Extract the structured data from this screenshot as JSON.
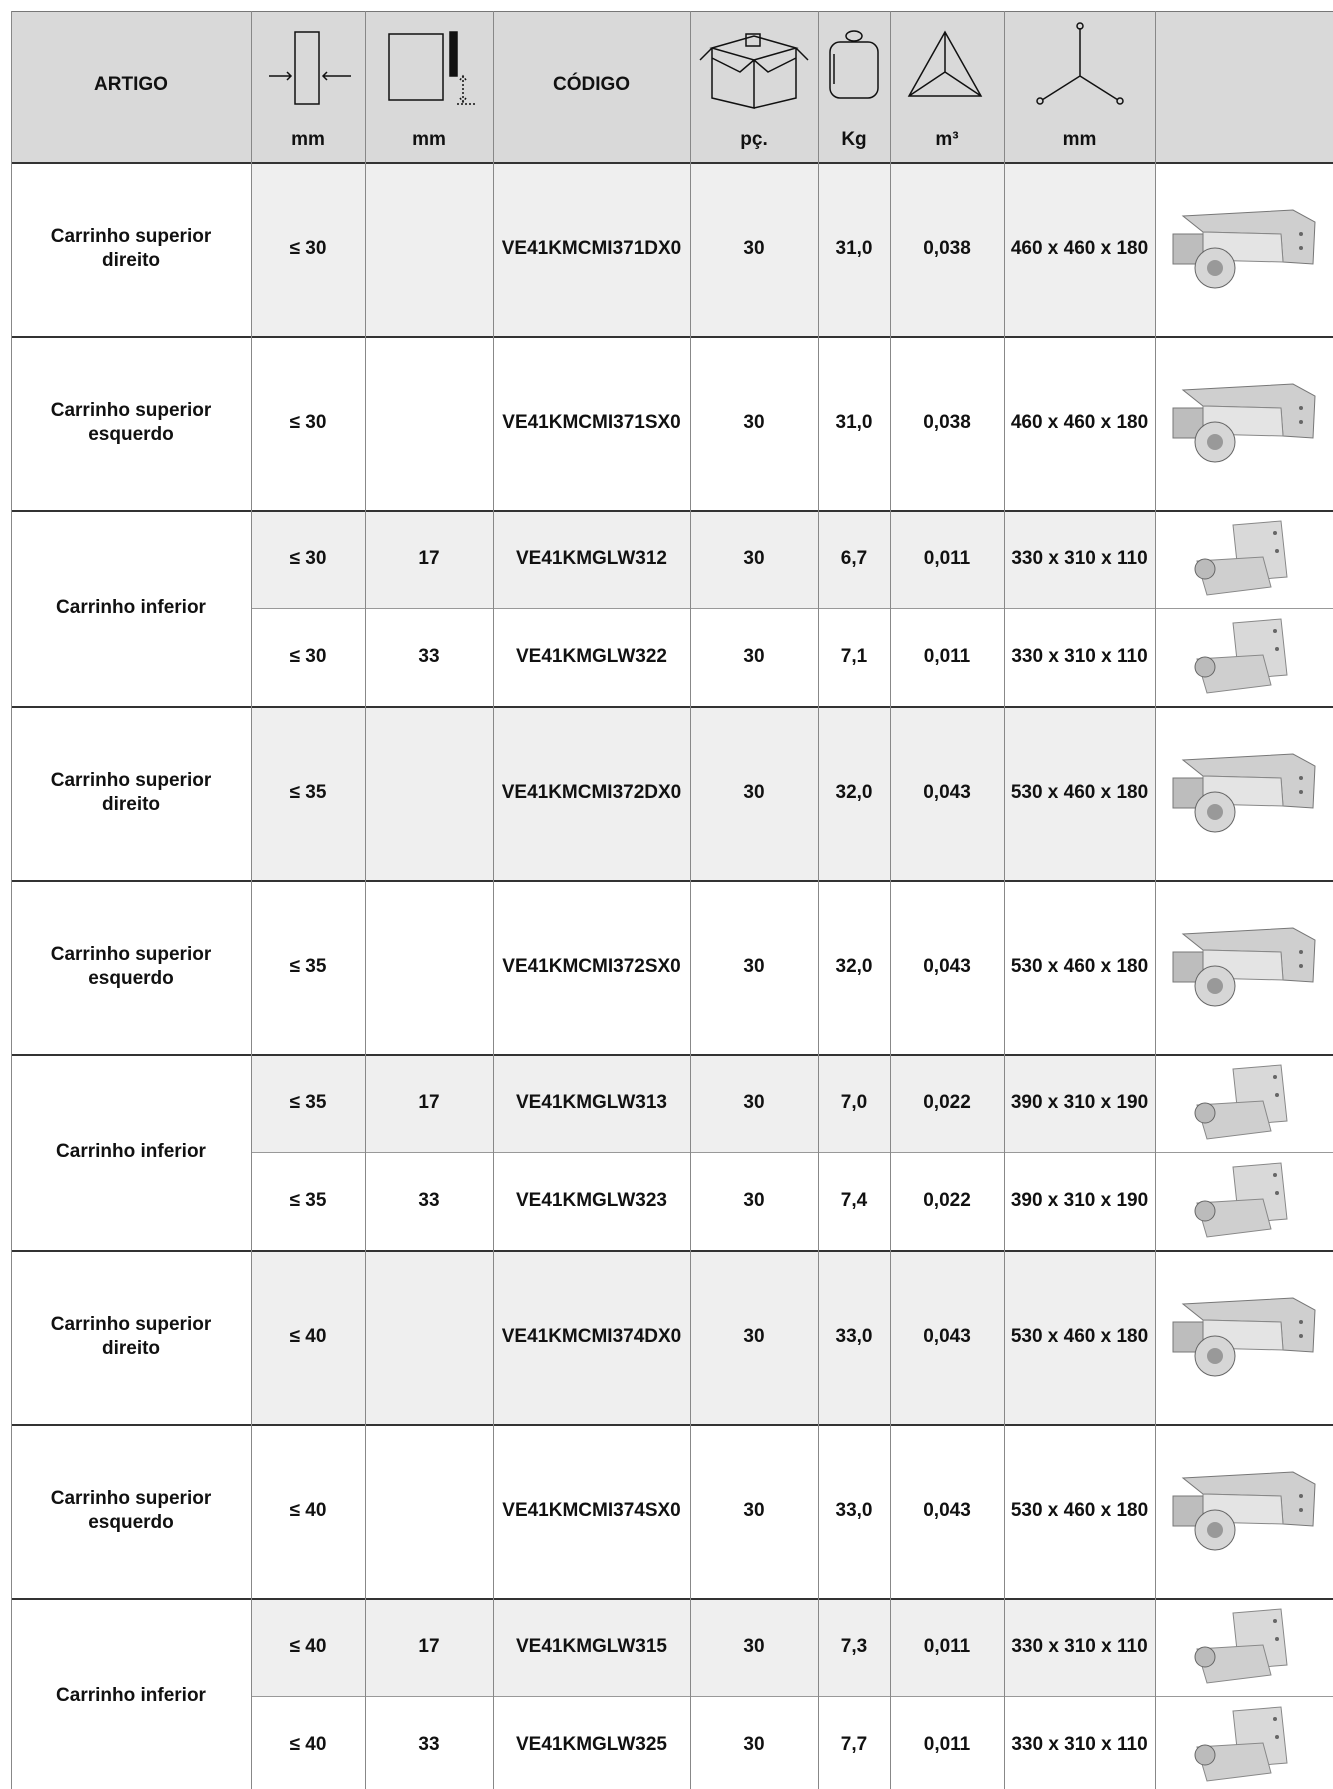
{
  "header": {
    "artigo": "ARTIGO",
    "codigo": "CÓDIGO",
    "units": [
      "mm",
      "mm",
      "pç.",
      "Kg",
      "m³",
      "mm"
    ]
  },
  "groups": [
    {
      "article": "Carrinho superior direito",
      "rows": [
        {
          "width": "≤ 30",
          "code": "VE41KMCMI371DX0",
          "pcs": "30",
          "kg": "31,0",
          "volume": "0,038",
          "dims": "460 x 460 x 180"
        }
      ]
    },
    {
      "article": "Carrinho superior esquerdo",
      "rows": [
        {
          "width": "≤ 30",
          "code": "VE41KMCMI371SX0",
          "pcs": "30",
          "kg": "31,0",
          "volume": "0,038",
          "dims": "460 x 460 x 180"
        }
      ]
    },
    {
      "article": "Carrinho inferior",
      "rows": [
        {
          "width": "≤ 30",
          "height": "17",
          "code": "VE41KMGLW312",
          "pcs": "30",
          "kg": "6,7",
          "volume": "0,011",
          "dims": "330 x 310 x 110"
        },
        {
          "width": "≤ 30",
          "height": "33",
          "code": "VE41KMGLW322",
          "pcs": "30",
          "kg": "7,1",
          "volume": "0,011",
          "dims": "330 x 310 x 110"
        }
      ]
    },
    {
      "article": "Carrinho superior direito",
      "rows": [
        {
          "width": "≤ 35",
          "code": "VE41KMCMI372DX0",
          "pcs": "30",
          "kg": "32,0",
          "volume": "0,043",
          "dims": "530 x 460 x 180"
        }
      ]
    },
    {
      "article": "Carrinho superior esquerdo",
      "rows": [
        {
          "width": "≤ 35",
          "code": "VE41KMCMI372SX0",
          "pcs": "30",
          "kg": "32,0",
          "volume": "0,043",
          "dims": "530 x 460 x 180"
        }
      ]
    },
    {
      "article": "Carrinho inferior",
      "rows": [
        {
          "width": "≤ 35",
          "height": "17",
          "code": "VE41KMGLW313",
          "pcs": "30",
          "kg": "7,0",
          "volume": "0,022",
          "dims": "390 x 310 x 190"
        },
        {
          "width": "≤ 35",
          "height": "33",
          "code": "VE41KMGLW323",
          "pcs": "30",
          "kg": "7,4",
          "volume": "0,022",
          "dims": "390 x 310 x 190"
        }
      ]
    },
    {
      "article": "Carrinho superior direito",
      "rows": [
        {
          "width": "≤ 40",
          "code": "VE41KMCMI374DX0",
          "pcs": "30",
          "kg": "33,0",
          "volume": "0,043",
          "dims": "530 x 460 x 180"
        }
      ]
    },
    {
      "article": "Carrinho superior esquerdo",
      "rows": [
        {
          "width": "≤ 40",
          "code": "VE41KMCMI374SX0",
          "pcs": "30",
          "kg": "33,0",
          "volume": "0,043",
          "dims": "530 x 460 x 180"
        }
      ]
    },
    {
      "article": "Carrinho inferior",
      "rows": [
        {
          "width": "≤ 40",
          "height": "17",
          "code": "VE41KMGLW315",
          "pcs": "30",
          "kg": "7,3",
          "volume": "0,011",
          "dims": "330 x 310 x 110"
        },
        {
          "width": "≤ 40",
          "height": "33",
          "code": "VE41KMGLW325",
          "pcs": "30",
          "kg": "7,7",
          "volume": "0,011",
          "dims": "330 x 310 x 110"
        }
      ]
    }
  ]
}
